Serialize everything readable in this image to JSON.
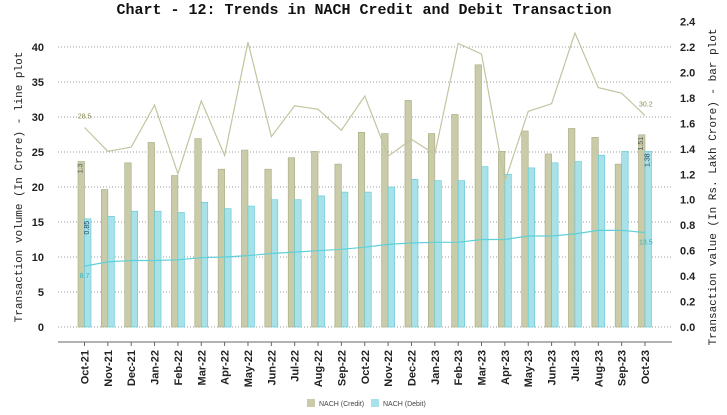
{
  "chart_data": {
    "type": "bar+line",
    "title": "Chart - 12: Trends in NACH Credit and Debit Transaction",
    "ylabel_left": "Transaction volume (In Crore) - line plot",
    "ylabel_right": "Transaction value (In Rs. Lakh Crore) - bar plot",
    "ylim_left": [
      0,
      45
    ],
    "yticks_left": [
      0,
      5,
      10,
      15,
      20,
      25,
      30,
      35,
      40
    ],
    "ylim_right": [
      0,
      2.4
    ],
    "yticks_right": [
      "0.0",
      "0.2",
      "0.4",
      "0.6",
      "0.8",
      "1.0",
      "1.2",
      "1.4",
      "1.6",
      "1.8",
      "2.0",
      "2.2",
      "2.4"
    ],
    "grid": true,
    "legend_position": "bottom",
    "categories": [
      "Oct-21",
      "Nov-21",
      "Dec-21",
      "Jan-22",
      "Feb-22",
      "Mar-22",
      "Apr-22",
      "May-22",
      "Jun-22",
      "Jul-22",
      "Aug-22",
      "Sep-22",
      "Oct-22",
      "Nov-22",
      "Dec-22",
      "Jan-23",
      "Feb-23",
      "Mar-23",
      "Apr-23",
      "May-23",
      "Jun-23",
      "Jul-23",
      "Aug-23",
      "Sep-23",
      "Oct-23"
    ],
    "bar_series": [
      {
        "name": "NACH (Credit)",
        "axis": "right",
        "color": "#c9cba9",
        "values": [
          1.3,
          1.08,
          1.29,
          1.45,
          1.19,
          1.48,
          1.24,
          1.39,
          1.24,
          1.33,
          1.38,
          1.28,
          1.53,
          1.52,
          1.78,
          1.52,
          1.67,
          2.06,
          1.38,
          1.54,
          1.36,
          1.56,
          1.49,
          1.28,
          1.51
        ],
        "data_labels": {
          "0": "1.3",
          "24": "1.51"
        }
      },
      {
        "name": "NACH (Debit)",
        "axis": "right",
        "color": "#a9e1e8",
        "values": [
          0.85,
          0.87,
          0.91,
          0.91,
          0.9,
          0.98,
          0.93,
          0.95,
          1.0,
          1.0,
          1.03,
          1.06,
          1.06,
          1.1,
          1.16,
          1.15,
          1.15,
          1.26,
          1.2,
          1.25,
          1.29,
          1.3,
          1.35,
          1.38,
          1.38
        ],
        "data_labels": {
          "0": "0.85",
          "24": "1.38"
        }
      }
    ],
    "line_series": [
      {
        "axis": "left",
        "color": "#c2c5a0",
        "values": [
          28.5,
          25.1,
          25.7,
          31.7,
          21.9,
          32.3,
          24.5,
          40.7,
          27.2,
          31.6,
          31.1,
          28.1,
          33.0,
          24.4,
          26.8,
          24.7,
          40.5,
          39.0,
          20.8,
          30.8,
          31.9,
          42.0,
          34.2,
          33.4,
          30.2
        ],
        "data_labels": {
          "0": "28.5",
          "24": "30.2"
        }
      },
      {
        "axis": "left",
        "color": "#5fd0d8",
        "values": [
          8.7,
          9.3,
          9.5,
          9.5,
          9.6,
          9.9,
          10.0,
          10.2,
          10.5,
          10.7,
          10.9,
          11.1,
          11.4,
          11.8,
          12.0,
          12.1,
          12.1,
          12.5,
          12.5,
          13.0,
          13.0,
          13.3,
          13.8,
          13.8,
          13.5
        ],
        "data_labels": {
          "0": "8.7",
          "24": "13.5"
        }
      }
    ]
  }
}
